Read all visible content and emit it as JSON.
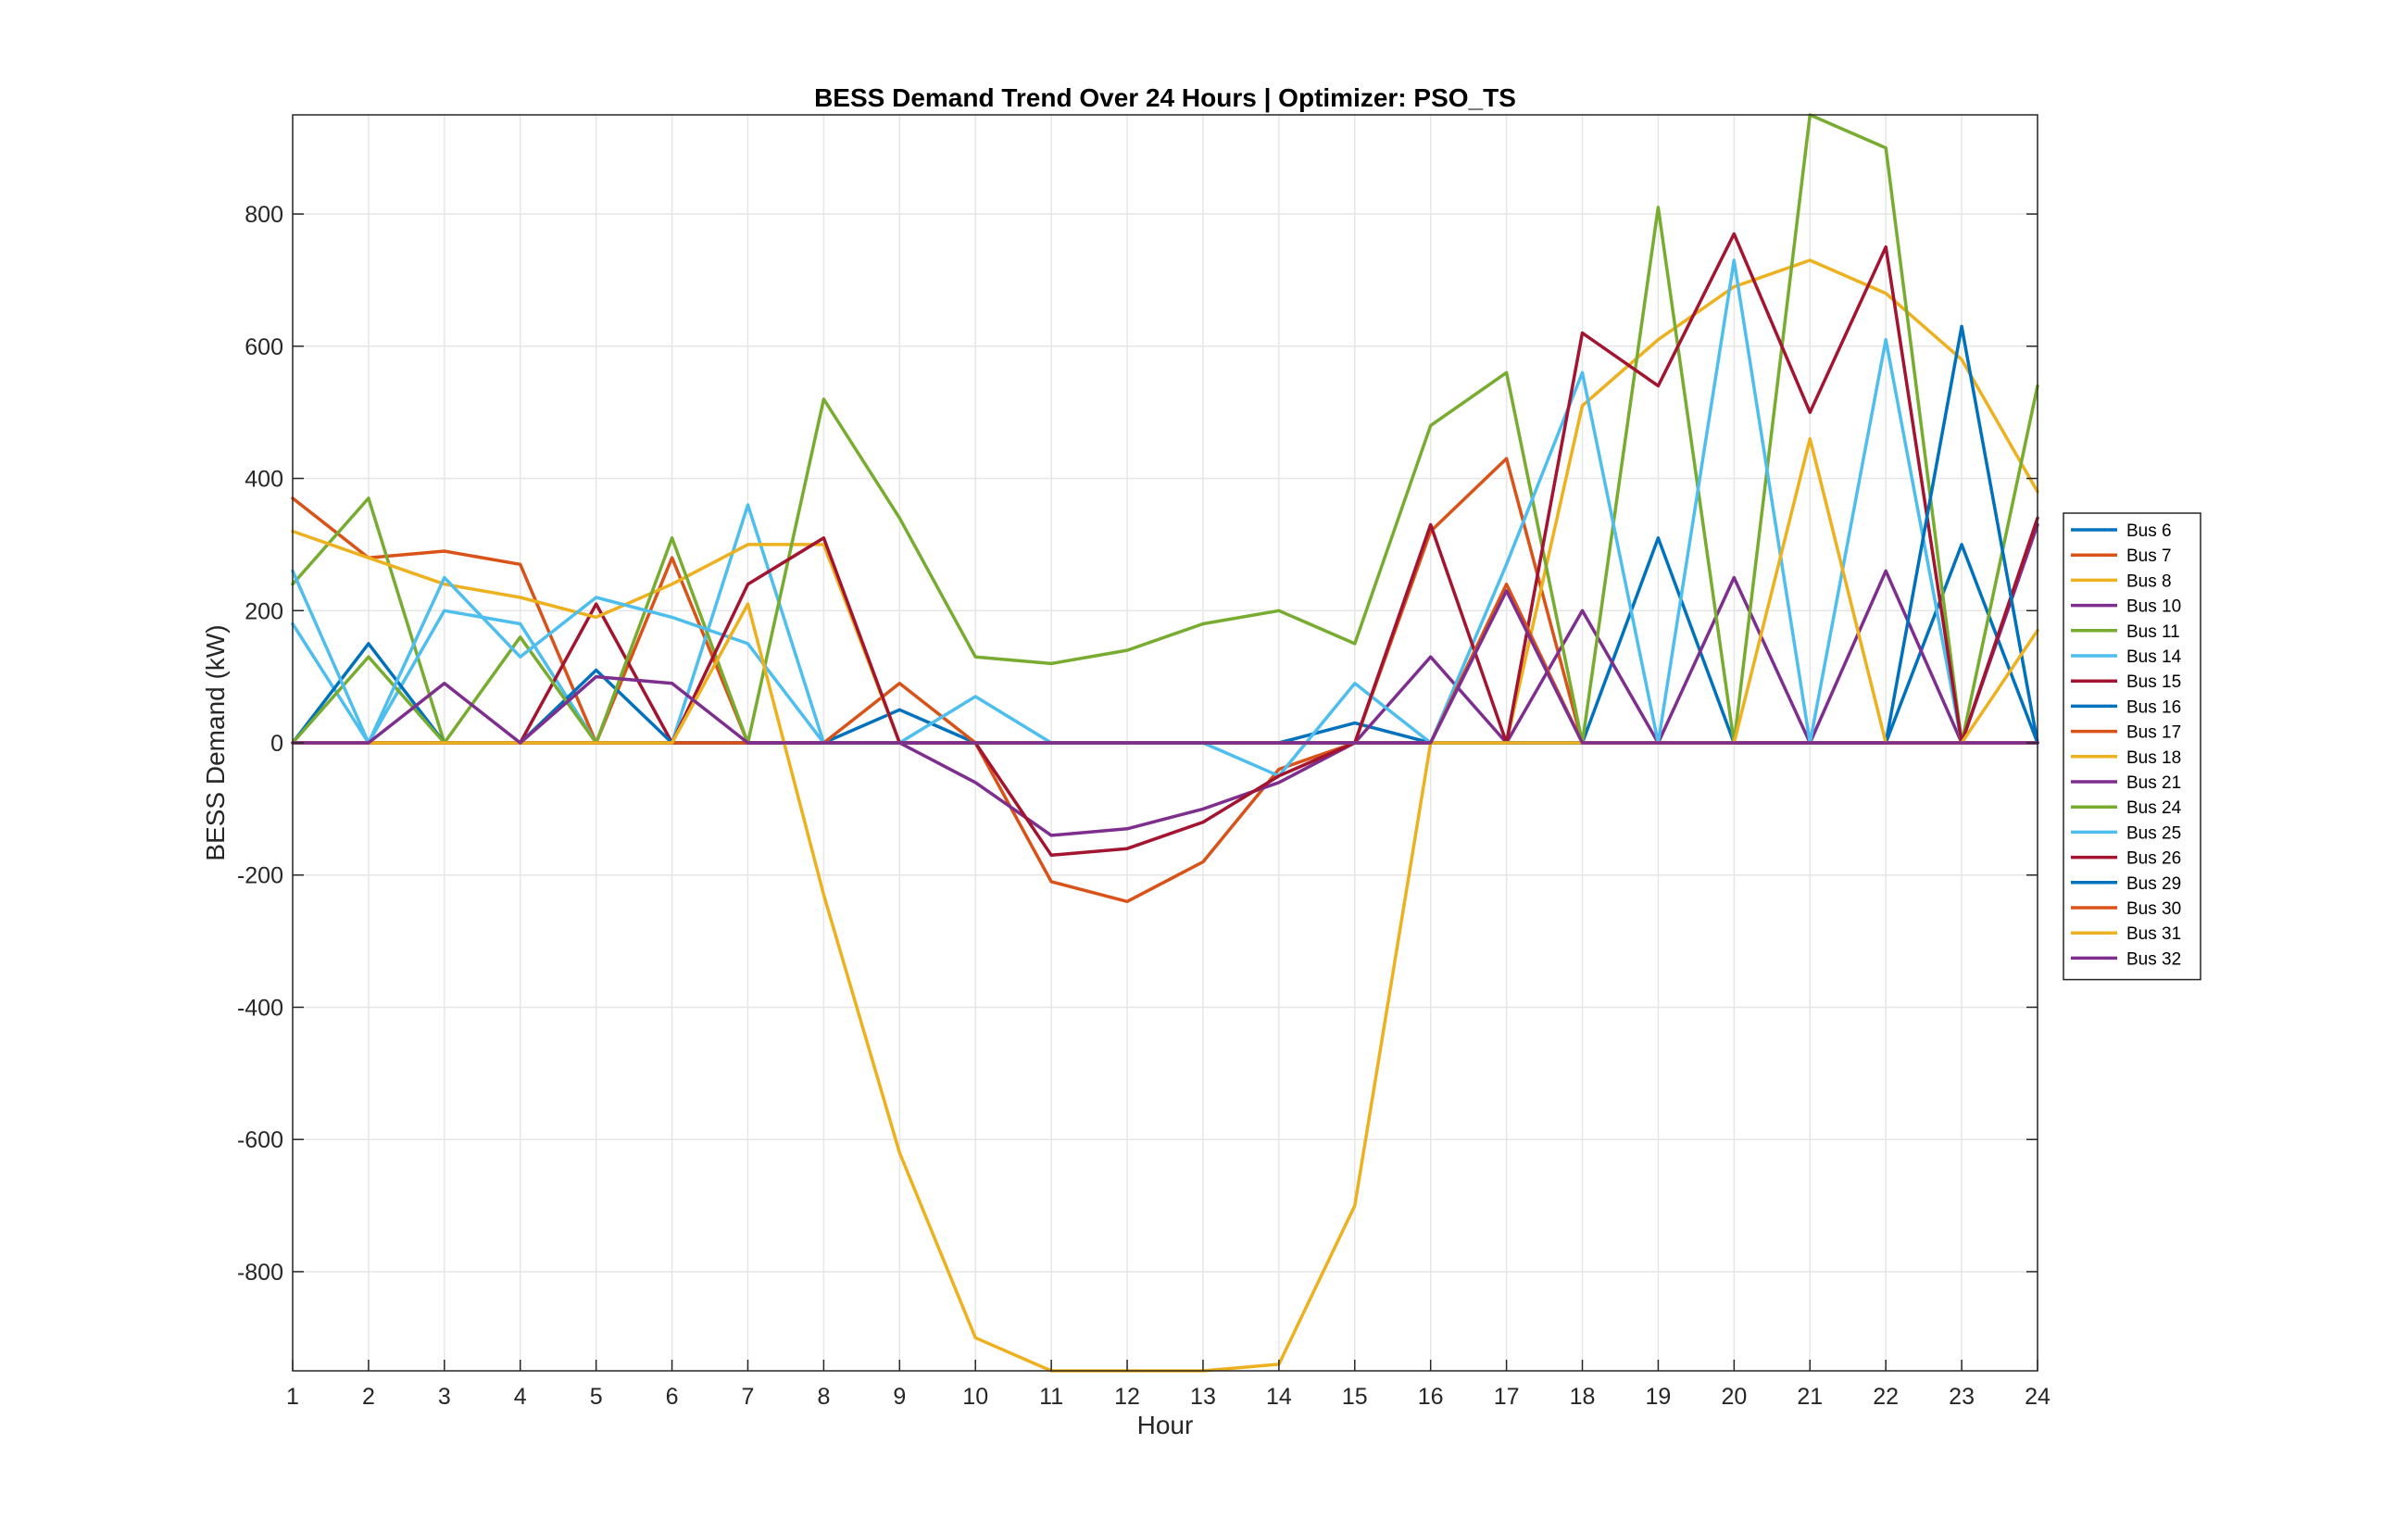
{
  "chart_data": {
    "type": "line",
    "title": "BESS Demand Trend Over 24 Hours | Optimizer: PSO_TS",
    "xlabel": "Hour",
    "ylabel": "BESS Demand (kW)",
    "xlim": [
      1,
      24
    ],
    "ylim": [
      -950,
      950
    ],
    "xticks": [
      1,
      2,
      3,
      4,
      5,
      6,
      7,
      8,
      9,
      10,
      11,
      12,
      13,
      14,
      15,
      16,
      17,
      18,
      19,
      20,
      21,
      22,
      23,
      24
    ],
    "yticks": [
      -800,
      -600,
      -400,
      -200,
      0,
      200,
      400,
      600,
      800
    ],
    "grid": true,
    "legend_position": "right",
    "x": [
      1,
      2,
      3,
      4,
      5,
      6,
      7,
      8,
      9,
      10,
      11,
      12,
      13,
      14,
      15,
      16,
      17,
      18,
      19,
      20,
      21,
      22,
      23,
      24
    ],
    "series": [
      {
        "name": "Bus 6",
        "color": "#0072BD",
        "values": [
          0,
          0,
          0,
          0,
          0,
          0,
          0,
          0,
          0,
          0,
          0,
          0,
          0,
          0,
          0,
          0,
          0,
          0,
          0,
          0,
          0,
          0,
          0,
          0
        ]
      },
      {
        "name": "Bus 7",
        "color": "#D95319",
        "values": [
          370,
          280,
          290,
          270,
          0,
          280,
          0,
          0,
          0,
          0,
          0,
          0,
          0,
          0,
          0,
          0,
          0,
          0,
          0,
          0,
          0,
          0,
          0,
          0
        ]
      },
      {
        "name": "Bus 8",
        "color": "#EDB120",
        "values": [
          0,
          0,
          0,
          0,
          0,
          0,
          0,
          0,
          0,
          0,
          0,
          0,
          0,
          0,
          0,
          0,
          0,
          0,
          0,
          0,
          0,
          0,
          0,
          0
        ]
      },
      {
        "name": "Bus 10",
        "color": "#7E2F8E",
        "values": [
          0,
          0,
          0,
          0,
          0,
          0,
          0,
          0,
          0,
          0,
          0,
          0,
          0,
          0,
          0,
          0,
          0,
          0,
          0,
          0,
          0,
          0,
          0,
          0
        ]
      },
      {
        "name": "Bus 11",
        "color": "#77AC30",
        "values": [
          240,
          370,
          0,
          0,
          0,
          0,
          0,
          0,
          0,
          0,
          0,
          0,
          0,
          0,
          0,
          0,
          0,
          0,
          0,
          0,
          0,
          0,
          0,
          0
        ]
      },
      {
        "name": "Bus 14",
        "color": "#4DBEEE",
        "values": [
          180,
          0,
          200,
          180,
          0,
          0,
          360,
          0,
          0,
          0,
          0,
          0,
          0,
          0,
          0,
          0,
          0,
          0,
          0,
          0,
          0,
          0,
          0,
          0
        ]
      },
      {
        "name": "Bus 15",
        "color": "#A2142F",
        "values": [
          0,
          0,
          0,
          0,
          210,
          0,
          0,
          0,
          0,
          0,
          0,
          0,
          0,
          0,
          0,
          0,
          0,
          0,
          0,
          0,
          0,
          0,
          0,
          0
        ]
      },
      {
        "name": "Bus 16",
        "color": "#0072BD",
        "values": [
          0,
          150,
          0,
          0,
          110,
          0,
          0,
          0,
          50,
          0,
          0,
          0,
          0,
          0,
          30,
          0,
          0,
          0,
          310,
          0,
          0,
          0,
          300,
          0
        ]
      },
      {
        "name": "Bus 17",
        "color": "#D95319",
        "values": [
          0,
          0,
          0,
          0,
          0,
          0,
          0,
          0,
          90,
          0,
          -210,
          -240,
          -180,
          -40,
          0,
          320,
          430,
          0,
          0,
          0,
          0,
          0,
          0,
          0
        ]
      },
      {
        "name": "Bus 18",
        "color": "#EDB120",
        "values": [
          320,
          280,
          240,
          220,
          190,
          240,
          300,
          300,
          0,
          0,
          0,
          0,
          0,
          0,
          0,
          0,
          0,
          510,
          610,
          690,
          730,
          680,
          580,
          380
        ]
      },
      {
        "name": "Bus 21",
        "color": "#7E2F8E",
        "values": [
          0,
          0,
          0,
          0,
          0,
          0,
          0,
          0,
          0,
          -60,
          -140,
          -130,
          -100,
          -60,
          0,
          130,
          0,
          200,
          0,
          250,
          0,
          260,
          0,
          330
        ]
      },
      {
        "name": "Bus 24",
        "color": "#77AC30",
        "values": [
          0,
          130,
          0,
          160,
          0,
          310,
          0,
          520,
          340,
          130,
          120,
          140,
          180,
          200,
          150,
          480,
          560,
          0,
          810,
          0,
          950,
          900,
          0,
          540
        ]
      },
      {
        "name": "Bus 25",
        "color": "#4DBEEE",
        "values": [
          260,
          0,
          250,
          130,
          220,
          190,
          150,
          0,
          0,
          70,
          0,
          0,
          0,
          -50,
          90,
          0,
          270,
          560,
          0,
          730,
          0,
          610,
          0,
          0
        ]
      },
      {
        "name": "Bus 26",
        "color": "#A2142F",
        "values": [
          0,
          0,
          0,
          0,
          0,
          0,
          240,
          310,
          0,
          0,
          -170,
          -160,
          -120,
          -50,
          0,
          330,
          0,
          620,
          540,
          770,
          500,
          750,
          0,
          340
        ]
      },
      {
        "name": "Bus 29",
        "color": "#0072BD",
        "values": [
          0,
          0,
          0,
          0,
          0,
          0,
          0,
          0,
          0,
          0,
          0,
          0,
          0,
          0,
          0,
          0,
          0,
          0,
          0,
          0,
          0,
          0,
          630,
          0
        ]
      },
      {
        "name": "Bus 30",
        "color": "#D95319",
        "values": [
          0,
          0,
          0,
          0,
          0,
          0,
          0,
          0,
          0,
          0,
          0,
          0,
          0,
          0,
          0,
          0,
          240,
          0,
          0,
          0,
          0,
          0,
          0,
          0
        ]
      },
      {
        "name": "Bus 31",
        "color": "#EDB120",
        "values": [
          0,
          0,
          0,
          0,
          0,
          0,
          210,
          -230,
          -620,
          -900,
          -950,
          -950,
          -950,
          -940,
          -700,
          0,
          0,
          0,
          0,
          0,
          460,
          0,
          0,
          170
        ]
      },
      {
        "name": "Bus 32",
        "color": "#7E2F8E",
        "values": [
          0,
          0,
          90,
          0,
          100,
          90,
          0,
          0,
          0,
          0,
          0,
          0,
          0,
          0,
          0,
          0,
          230,
          0,
          0,
          0,
          0,
          0,
          0,
          0
        ]
      }
    ]
  }
}
